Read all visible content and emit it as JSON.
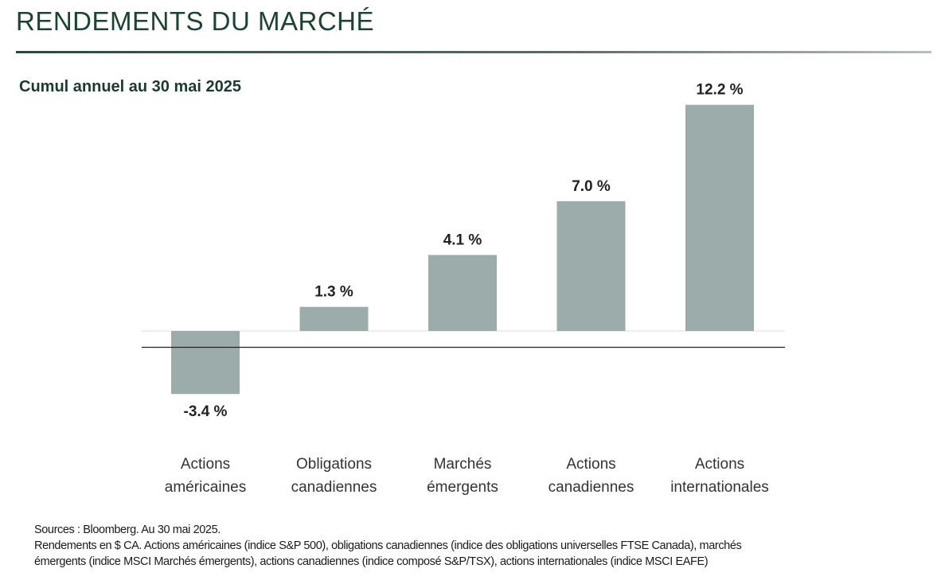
{
  "header": {
    "title": "RENDEMENTS DU MARCHÉ"
  },
  "chart_data": {
    "type": "bar",
    "title": "",
    "subtitle": "Cumul annuel au 30 mai 2025",
    "categories": [
      [
        "Actions",
        "américaines"
      ],
      [
        "Obligations",
        "canadiennes"
      ],
      [
        "Marchés",
        "émergents"
      ],
      [
        "Actions",
        "canadiennes"
      ],
      [
        "Actions",
        "internationales"
      ]
    ],
    "values": [
      -3.4,
      1.3,
      4.1,
      7.0,
      12.2
    ],
    "value_labels": [
      "-3.4 %",
      "1.3 %",
      "4.1 %",
      "7.0 %",
      "12.2 %"
    ],
    "unit": "%",
    "bar_color": "#9bacaa",
    "grid": false,
    "legend": "none"
  },
  "footer": {
    "sources": "Sources : Bloomberg. Au 30 mai 2025.",
    "note_line1": "Rendements en $ CA. Actions américaines (indice S&P 500), obligations canadiennes (indice des obligations universelles FTSE Canada), marchés",
    "note_line2": "émergents (indice MSCI Marchés émergents), actions canadiennes (indice composé S&P/TSX), actions internationales (indice MSCI EAFE)"
  }
}
